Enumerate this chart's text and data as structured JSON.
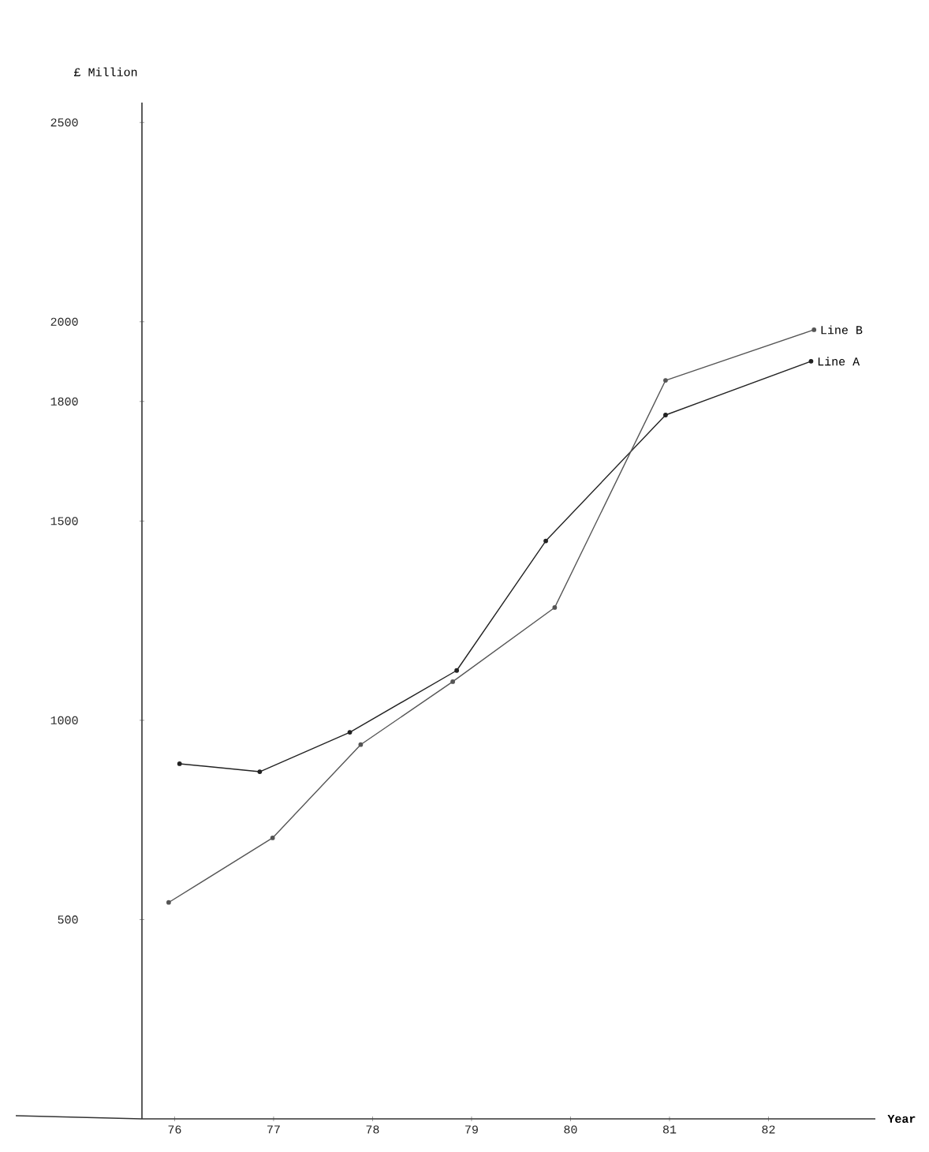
{
  "chart_data": {
    "type": "line",
    "xlabel": "Year",
    "ylabel": "£ Million",
    "xlim": [
      75.67,
      83.08
    ],
    "ylim": [
      0,
      2550
    ],
    "xticks": [
      76,
      77,
      78,
      79,
      80,
      81,
      82
    ],
    "yticks": [
      500,
      1000,
      1500,
      1800,
      2000,
      2500
    ],
    "marker": "circle",
    "line_style": "solid",
    "grid": false,
    "legend": false,
    "series": [
      {
        "name": "Line A",
        "color": "#222222",
        "x": [
          76.05,
          76.86,
          77.77,
          78.85,
          79.75,
          80.96,
          82.43
        ],
        "values": [
          891,
          871,
          970,
          1125,
          1450,
          1766,
          1901
        ]
      },
      {
        "name": "Line B",
        "color": "#555555",
        "x": [
          75.94,
          76.99,
          77.88,
          78.81,
          79.84,
          80.96,
          82.46
        ],
        "values": [
          543,
          705,
          939,
          1097,
          1283,
          1853,
          1980
        ]
      }
    ]
  }
}
